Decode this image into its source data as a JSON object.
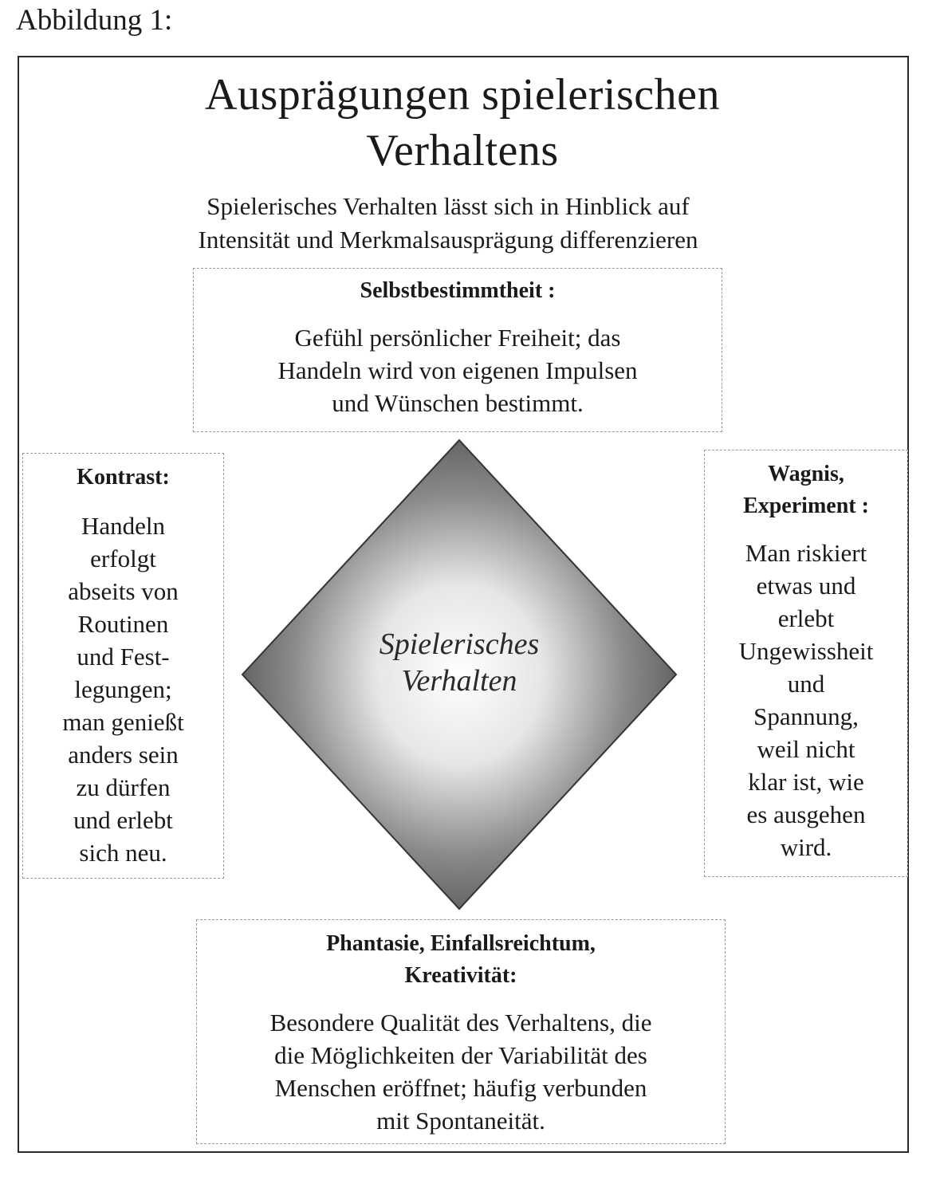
{
  "caption": "Abbildung 1:",
  "title": {
    "line1": "Ausprägungen  spielerischen",
    "line2": "Verhaltens"
  },
  "subtitle": {
    "line1": "Spielerisches Verhalten lässt sich in Hinblick auf",
    "line2": "Intensität und Merkmalsausprägung differenzieren"
  },
  "center": {
    "line1": "Spielerisches",
    "line2": "Verhalten"
  },
  "top": {
    "heading": "Selbstbestimmtheit :",
    "lines": [
      "Gefühl persönlicher Freiheit; das",
      "Handeln wird von eigenen Impulsen",
      "und Wünschen bestimmt."
    ]
  },
  "left": {
    "heading": "Kontrast:",
    "lines": [
      "Handeln",
      "erfolgt",
      "abseits von",
      "Routinen",
      "und Fest-",
      "legungen;",
      "man genießt",
      "anders sein",
      "zu dürfen",
      "und erlebt",
      "sich neu."
    ]
  },
  "right": {
    "heading_lines": [
      "Wagnis,",
      "Experiment :"
    ],
    "lines": [
      "Man riskiert",
      "etwas und",
      "erlebt",
      "Ungewissheit",
      "und",
      "Spannung,",
      "weil nicht",
      "klar ist, wie",
      "es ausgehen",
      "wird."
    ]
  },
  "bottom": {
    "heading_lines": [
      "Phantasie, Einfallsreichtum,",
      "Kreativität:"
    ],
    "lines": [
      "Besondere Qualität des Verhaltens, die",
      "die Möglichkeiten der Variabilität des",
      "Menschen eröffnet; häufig verbunden",
      "mit Spontaneität."
    ]
  },
  "colors": {
    "diamond_outer": "#555555",
    "diamond_center": "#ffffff",
    "box_border": "#9a9a9a"
  }
}
